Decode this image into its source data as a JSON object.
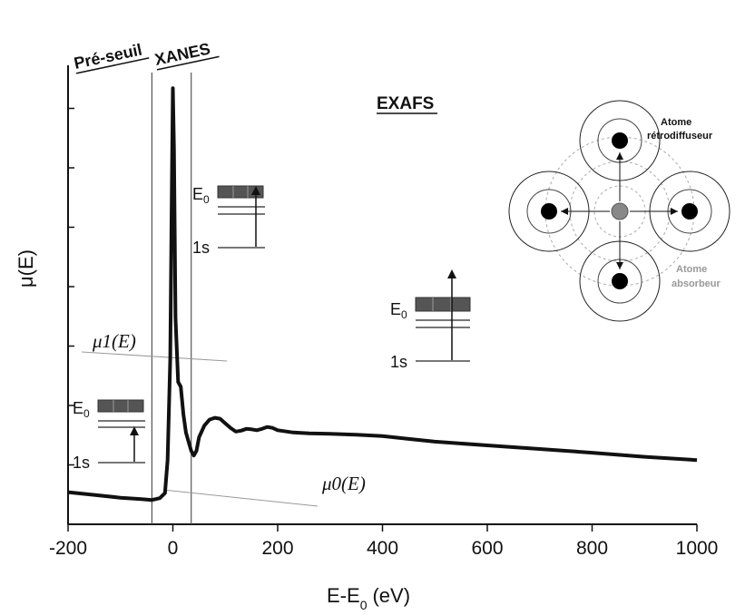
{
  "chart_data": {
    "type": "line",
    "xlabel": "E-E",
    "xlabel_sub": "0",
    "xlabel_unit": "(eV)",
    "ylabel": "μ(E)",
    "xlim": [
      -200,
      1000
    ],
    "xticks": [
      -200,
      0,
      200,
      400,
      600,
      800,
      1000
    ],
    "ylim": [
      0,
      1
    ],
    "grid": false,
    "series": [
      {
        "x": [
          -200,
          -150,
          -100,
          -60,
          -40,
          -25,
          -15,
          -10,
          -5,
          -2,
          0,
          2,
          5,
          10,
          15,
          20,
          25,
          30,
          35,
          40,
          45,
          50,
          60,
          70,
          80,
          90,
          100,
          110,
          120,
          130,
          140,
          150,
          160,
          170,
          180,
          190,
          200,
          230,
          260,
          300,
          350,
          400,
          450,
          500,
          600,
          700,
          800,
          900,
          1000
        ],
        "y": [
          0.07,
          0.064,
          0.058,
          0.055,
          0.053,
          0.057,
          0.068,
          0.14,
          0.36,
          0.72,
          0.95,
          0.82,
          0.45,
          0.31,
          0.3,
          0.24,
          0.2,
          0.18,
          0.16,
          0.15,
          0.16,
          0.19,
          0.215,
          0.228,
          0.232,
          0.23,
          0.22,
          0.21,
          0.202,
          0.204,
          0.208,
          0.207,
          0.205,
          0.208,
          0.212,
          0.21,
          0.205,
          0.2,
          0.198,
          0.197,
          0.195,
          0.192,
          0.186,
          0.18,
          0.172,
          0.164,
          0.156,
          0.147,
          0.14
        ]
      }
    ],
    "boundaries": [
      -40,
      35
    ],
    "regions": [
      "Pré-seuil",
      "XANES",
      "EXAFS"
    ],
    "annotations": {
      "mu1": "μ1(E)",
      "mu0": "μ0(E)",
      "level_top": "E",
      "level_top_sub": "0",
      "level_bottom": "1s"
    },
    "atom_labels": {
      "backscatter_line1": "Atome",
      "backscatter_line2": "rétrodiffuseur",
      "absorber_line1": "Atome",
      "absorber_line2": "absorbeur"
    }
  }
}
